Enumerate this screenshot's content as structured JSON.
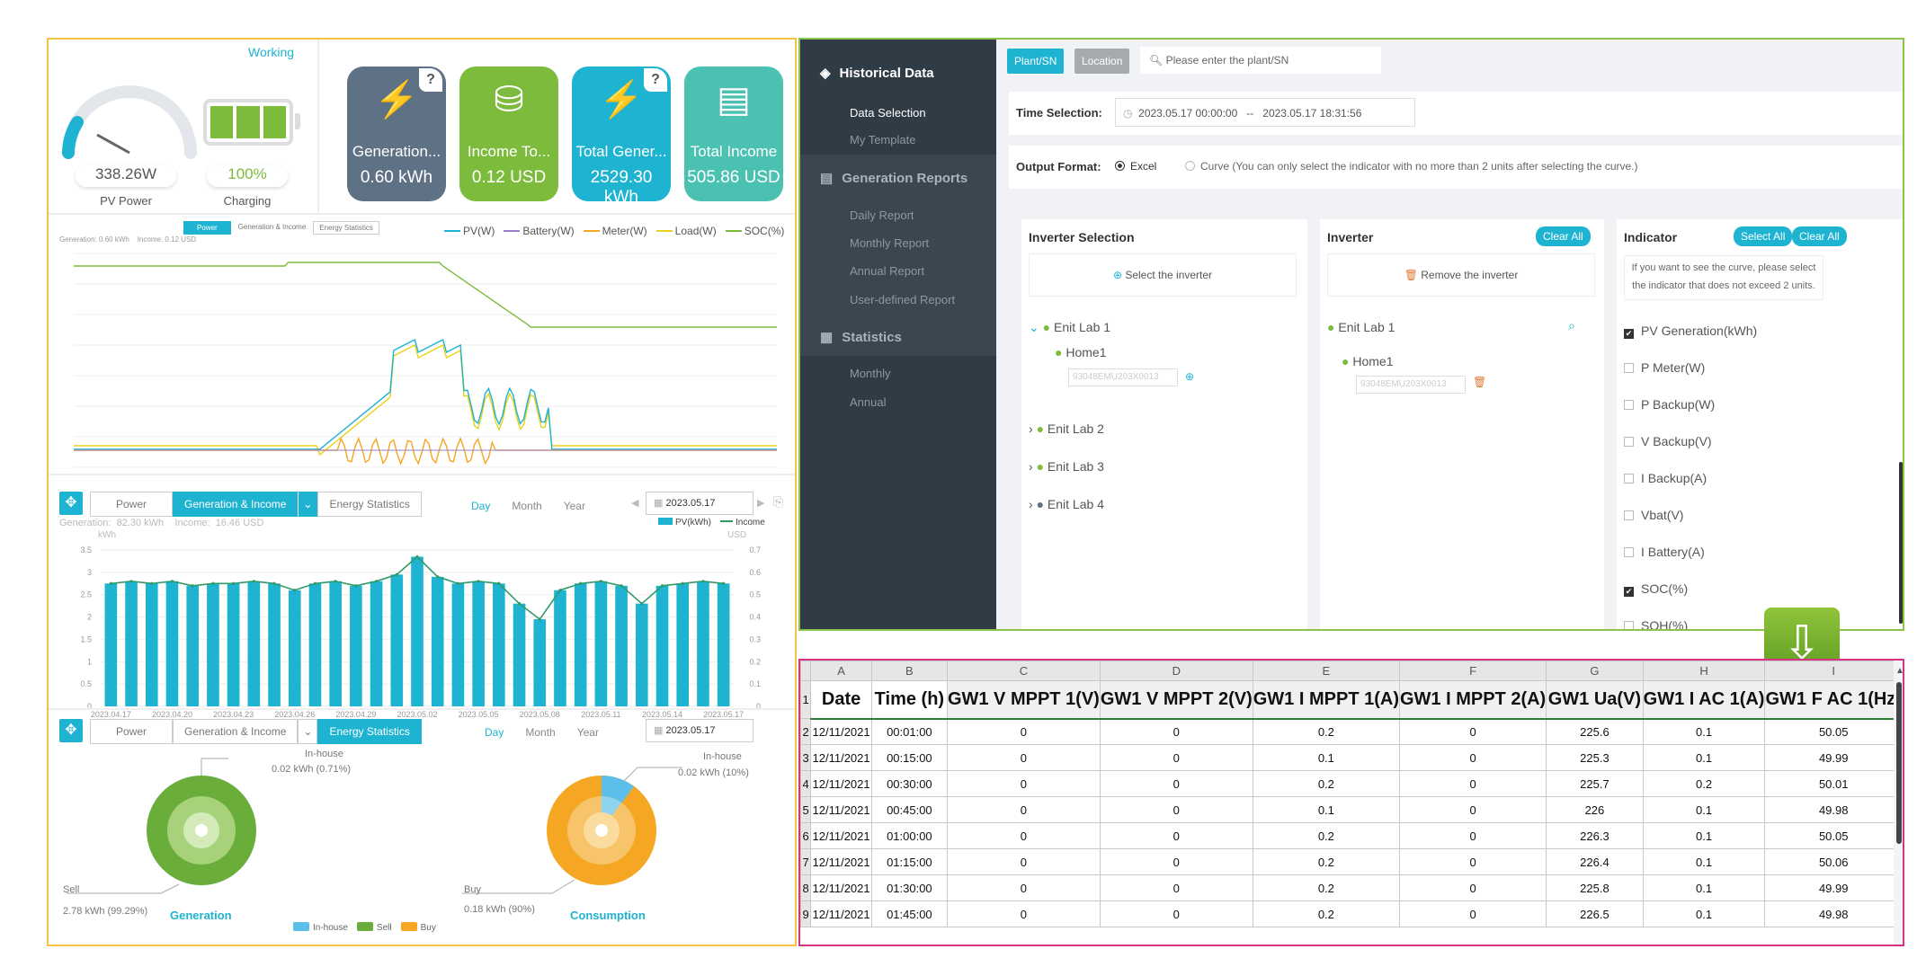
{
  "status": {
    "working": "Working",
    "pv_power": "338.26W",
    "pv_power_label": "PV Power",
    "charge": "100%",
    "charge_label": "Charging"
  },
  "kpis": [
    {
      "label": "Generation...",
      "value": "0.60 kWh",
      "color": "#5f7285",
      "has_help": true,
      "icon": "bolt-icon"
    },
    {
      "label": "Income To...",
      "value": "0.12 USD",
      "color": "#7dbb3c",
      "has_help": false,
      "icon": "coins-icon"
    },
    {
      "label": "Total Gener...",
      "value": "2529.30 kWh",
      "color": "#1fb3d2",
      "has_help": true,
      "icon": "bolt-icon"
    },
    {
      "label": "Total Income",
      "value": "505.86 USD",
      "color": "#4bc1b2",
      "has_help": false,
      "icon": "cash-icon"
    }
  ],
  "help_mark": "?",
  "chart1": {
    "tabs": [
      "Power",
      "Generation & Income",
      "Energy Statistics"
    ],
    "sub": "Generation: 0.60 kWh    Income: 0.12 USD",
    "legend": [
      {
        "name": "PV(W)",
        "color": "#1fb3d2"
      },
      {
        "name": "Battery(W)",
        "color": "#9b7fc9"
      },
      {
        "name": "Meter(W)",
        "color": "#f5a623"
      },
      {
        "name": "Load(W)",
        "color": "#e8d21a"
      },
      {
        "name": "SOC(%)",
        "color": "#7dbb3c"
      }
    ]
  },
  "chart2": {
    "tabs": [
      "Power",
      "Generation & Income",
      "Energy Statistics"
    ],
    "periods": [
      "Day",
      "Month",
      "Year"
    ],
    "date": "2023.05.17",
    "sub": "Generation:  82.30 kWh    Income:  16.46 USD",
    "ylabel": "kWh",
    "y2label": "USD",
    "legend": [
      "PV(kWh)",
      "Income"
    ]
  },
  "chart_data": {
    "type": "bar",
    "categories": [
      "2023.04.17",
      "2023.04.18",
      "2023.04.19",
      "2023.04.20",
      "2023.04.21",
      "2023.04.22",
      "2023.04.23",
      "2023.04.24",
      "2023.04.25",
      "2023.04.26",
      "2023.04.27",
      "2023.04.28",
      "2023.04.29",
      "2023.04.30",
      "2023.05.01",
      "2023.05.02",
      "2023.05.03",
      "2023.05.04",
      "2023.05.05",
      "2023.05.06",
      "2023.05.07",
      "2023.05.08",
      "2023.05.09",
      "2023.05.10",
      "2023.05.11",
      "2023.05.12",
      "2023.05.13",
      "2023.05.14",
      "2023.05.15",
      "2023.05.16",
      "2023.05.17"
    ],
    "xticks": [
      "2023.04.17",
      "2023.04.20",
      "2023.04.23",
      "2023.04.26",
      "2023.04.29",
      "2023.05.02",
      "2023.05.05",
      "2023.05.08",
      "2023.05.11",
      "2023.05.14",
      "2023.05.17"
    ],
    "series": [
      {
        "name": "PV(kWh)",
        "values": [
          2.75,
          2.8,
          2.75,
          2.8,
          2.7,
          2.75,
          2.75,
          2.8,
          2.75,
          2.6,
          2.75,
          2.8,
          2.7,
          2.8,
          2.95,
          3.35,
          2.9,
          2.75,
          2.8,
          2.75,
          2.3,
          1.95,
          2.6,
          2.75,
          2.8,
          2.7,
          2.3,
          2.7,
          2.75,
          2.8,
          2.75
        ]
      },
      {
        "name": "Income",
        "values": [
          0.55,
          0.56,
          0.55,
          0.56,
          0.54,
          0.55,
          0.55,
          0.56,
          0.55,
          0.52,
          0.55,
          0.56,
          0.54,
          0.56,
          0.59,
          0.67,
          0.58,
          0.55,
          0.56,
          0.55,
          0.46,
          0.39,
          0.52,
          0.55,
          0.56,
          0.54,
          0.46,
          0.54,
          0.55,
          0.56,
          0.55
        ]
      }
    ],
    "yticks": [
      "0",
      "0.5",
      "1",
      "1.5",
      "2",
      "2.5",
      "3",
      "3.5"
    ],
    "y2ticks": [
      "0",
      "0.1",
      "0.2",
      "0.3",
      "0.4",
      "0.5",
      "0.6",
      "0.7"
    ],
    "ylim": [
      0,
      3.5
    ],
    "y2lim": [
      0,
      0.7
    ]
  },
  "chart3": {
    "tabs": [
      "Power",
      "Generation & Income",
      "Energy Statistics"
    ],
    "periods": [
      "Day",
      "Month",
      "Year"
    ],
    "date": "2023.05.17",
    "gen": {
      "title": "Generation",
      "inhouse": "In-house",
      "inhouse_val": "0.02 kWh (0.71%)",
      "sell": "Sell",
      "sell_val": "2.78 kWh (99.29%)"
    },
    "con": {
      "title": "Consumption",
      "inhouse": "In-house",
      "inhouse_val": "0.02 kWh (10%)",
      "buy": "Buy",
      "buy_val": "0.18 kWh (90%)"
    },
    "legend": [
      "In-house",
      "Sell",
      "Buy"
    ]
  },
  "hist": {
    "filters": [
      "Plant/SN",
      "Location"
    ],
    "search_placeholder": "Please enter the plant/SN",
    "time_label": "Time Selection:",
    "time_from": "2023.05.17 00:00:00",
    "time_sep": "--",
    "time_to": "2023.05.17 18:31:56",
    "output_label": "Output Format:",
    "opt_excel": "Excel",
    "opt_curve": "Curve",
    "curve_note": "(You can only select the indicator with no more than 2 units after selecting the curve.)",
    "inv_sel_title": "Inverter Selection",
    "select_inv": "Select the inverter",
    "tree": [
      "Enit Lab 1",
      "Home1",
      "Enit Lab 2",
      "Enit Lab 3",
      "Enit Lab 4"
    ],
    "sn": "93048EMU203X0013",
    "inv_title": "Inverter",
    "clear_all": "Clear All",
    "remove_inv": "Remove the inverter",
    "inv_tree": [
      "Enit Lab 1",
      "Home1"
    ],
    "ind_title": "Indicator",
    "select_all": "Select All",
    "ind_note": "If you want to see the curve, please select the indicator that does not exceed 2 units.",
    "indicators": [
      {
        "n": "PV Generation(kWh)",
        "c": true
      },
      {
        "n": "P Meter(W)",
        "c": false
      },
      {
        "n": "P Backup(W)",
        "c": false
      },
      {
        "n": "V Backup(V)",
        "c": false
      },
      {
        "n": "I Backup(A)",
        "c": false
      },
      {
        "n": "Vbat(V)",
        "c": false
      },
      {
        "n": "I Battery(A)",
        "c": false
      },
      {
        "n": "SOC(%)",
        "c": true
      },
      {
        "n": "SOH(%)",
        "c": false
      }
    ]
  },
  "sidebar": {
    "h1": "Historical Data",
    "items1": [
      "Data Selection",
      "My Template"
    ],
    "h2": "Generation Reports",
    "items2": [
      "Daily Report",
      "Monthly Report",
      "Annual Report",
      "User-defined Report"
    ],
    "h3": "Statistics",
    "items3": [
      "Monthly",
      "Annual"
    ]
  },
  "sheet": {
    "cols": [
      "A",
      "B",
      "C",
      "D",
      "E",
      "F",
      "G",
      "H",
      "I"
    ],
    "headers": [
      "Date",
      "Time (h)",
      "GW1 V MPPT 1(V)",
      "GW1 V MPPT 2(V)",
      "GW1 I MPPT 1(A)",
      "GW1 I MPPT 2(A)",
      "GW1 Ua(V)",
      "GW1 I AC 1(A)",
      "GW1 F AC 1(Hz)"
    ],
    "rows": [
      [
        "12/11/2021",
        "00:01:00",
        "0",
        "0",
        "0.2",
        "0",
        "225.6",
        "0.1",
        "50.05"
      ],
      [
        "12/11/2021",
        "00:15:00",
        "0",
        "0",
        "0.1",
        "0",
        "225.3",
        "0.1",
        "49.99"
      ],
      [
        "12/11/2021",
        "00:30:00",
        "0",
        "0",
        "0.2",
        "0",
        "225.7",
        "0.2",
        "50.01"
      ],
      [
        "12/11/2021",
        "00:45:00",
        "0",
        "0",
        "0.1",
        "0",
        "226",
        "0.1",
        "49.98"
      ],
      [
        "12/11/2021",
        "01:00:00",
        "0",
        "0",
        "0.2",
        "0",
        "226.3",
        "0.1",
        "50.05"
      ],
      [
        "12/11/2021",
        "01:15:00",
        "0",
        "0",
        "0.2",
        "0",
        "226.4",
        "0.1",
        "50.06"
      ],
      [
        "12/11/2021",
        "01:30:00",
        "0",
        "0",
        "0.2",
        "0",
        "225.8",
        "0.1",
        "49.99"
      ],
      [
        "12/11/2021",
        "01:45:00",
        "0",
        "0",
        "0.2",
        "0",
        "226.5",
        "0.1",
        "49.98"
      ]
    ]
  }
}
